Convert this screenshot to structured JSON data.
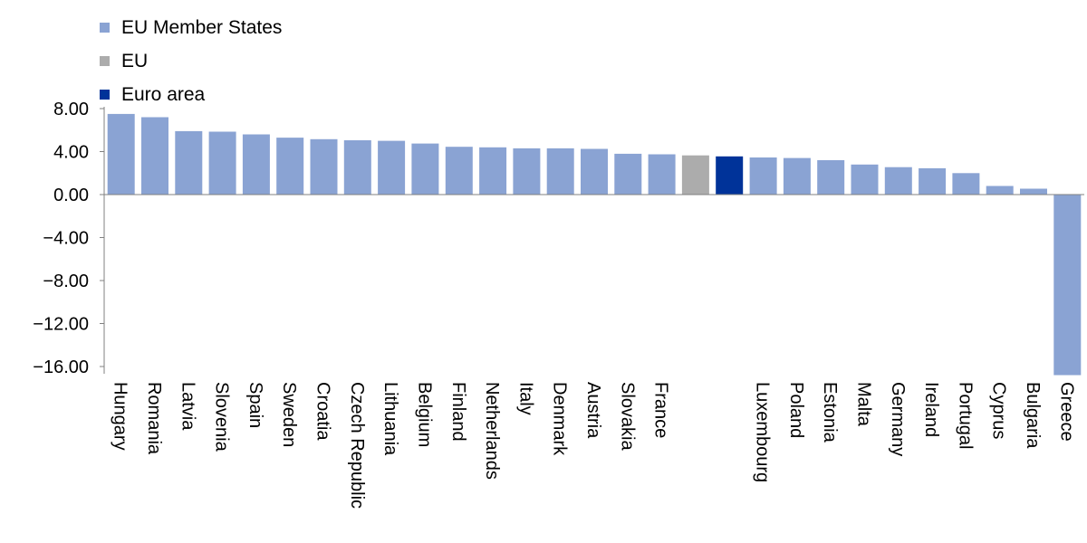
{
  "colors": {
    "member": "#8aa3d3",
    "eu": "#acacac",
    "euro": "#003399"
  },
  "legend": [
    {
      "label": "EU Member States",
      "color": "#8aa3d3"
    },
    {
      "label": "EU",
      "color": "#acacac"
    },
    {
      "label": "Euro area",
      "color": "#003399"
    }
  ],
  "chart_data": {
    "type": "bar",
    "title": "",
    "xlabel": "",
    "ylabel": "",
    "ylim": [
      -16,
      8
    ],
    "yticks": [
      "8.00",
      "4.00",
      "0.00",
      "−4.00",
      "−8.00",
      "−12.00",
      "−16.00"
    ],
    "ytick_values": [
      8,
      4,
      0,
      -4,
      -8,
      -12,
      -16
    ],
    "grid": false,
    "legend_position": "top-left",
    "categories": [
      "Hungary",
      "Romania",
      "Latvia",
      "Slovenia",
      "Spain",
      "Sweden",
      "Croatia",
      "Czech Republic",
      "Lithuania",
      "Belgium",
      "Finland",
      "Netherlands",
      "Italy",
      "Denmark",
      "Austria",
      "Slovakia",
      "France",
      "",
      "",
      "Luxembourg",
      "Poland",
      "Estonia",
      "Malta",
      "Germany",
      "Ireland",
      "Portugal",
      "Cyprus",
      "Bulgaria",
      "Greece"
    ],
    "groups": [
      "member",
      "member",
      "member",
      "member",
      "member",
      "member",
      "member",
      "member",
      "member",
      "member",
      "member",
      "member",
      "member",
      "member",
      "member",
      "member",
      "member",
      "eu",
      "euro",
      "member",
      "member",
      "member",
      "member",
      "member",
      "member",
      "member",
      "member",
      "member",
      "member"
    ],
    "values": [
      7.5,
      7.2,
      5.9,
      5.85,
      5.6,
      5.3,
      5.15,
      5.05,
      5.0,
      4.75,
      4.45,
      4.4,
      4.3,
      4.3,
      4.25,
      3.8,
      3.75,
      3.65,
      3.55,
      3.45,
      3.4,
      3.2,
      2.8,
      2.55,
      2.45,
      2.0,
      0.8,
      0.55,
      -16.8
    ]
  }
}
